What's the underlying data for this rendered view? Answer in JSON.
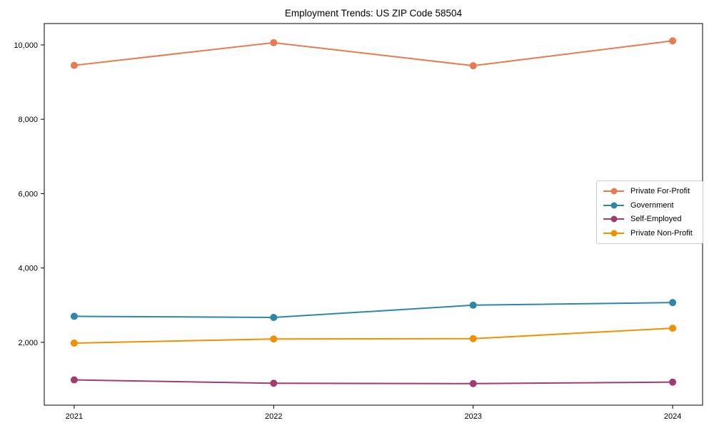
{
  "chart_data": {
    "type": "line",
    "title": "Employment Trends: US ZIP Code 58504",
    "categories": [
      "2021",
      "2022",
      "2023",
      "2024"
    ],
    "series": [
      {
        "name": "Private For-Profit",
        "color": "#E87A4F",
        "values": [
          9450,
          10060,
          9440,
          10110
        ]
      },
      {
        "name": "Government",
        "color": "#2E86AB",
        "values": [
          2700,
          2670,
          3000,
          3070
        ]
      },
      {
        "name": "Self-Employed",
        "color": "#A23B72",
        "values": [
          990,
          900,
          890,
          930
        ]
      },
      {
        "name": "Private Non-Profit",
        "color": "#F18F01",
        "values": [
          1980,
          2090,
          2100,
          2380
        ]
      }
    ],
    "yticks": [
      {
        "value": 2000,
        "label": "2,000"
      },
      {
        "value": 4000,
        "label": "4,000"
      },
      {
        "value": 6000,
        "label": "6,000"
      },
      {
        "value": 8000,
        "label": "8,000"
      },
      {
        "value": 10000,
        "label": "10,000"
      }
    ],
    "ylim": [
      310,
      10575
    ],
    "xlabel": "",
    "ylabel": "",
    "grid": false,
    "legend_position": "center right",
    "marker": "circle",
    "line_width": 2,
    "marker_radius": 5
  }
}
